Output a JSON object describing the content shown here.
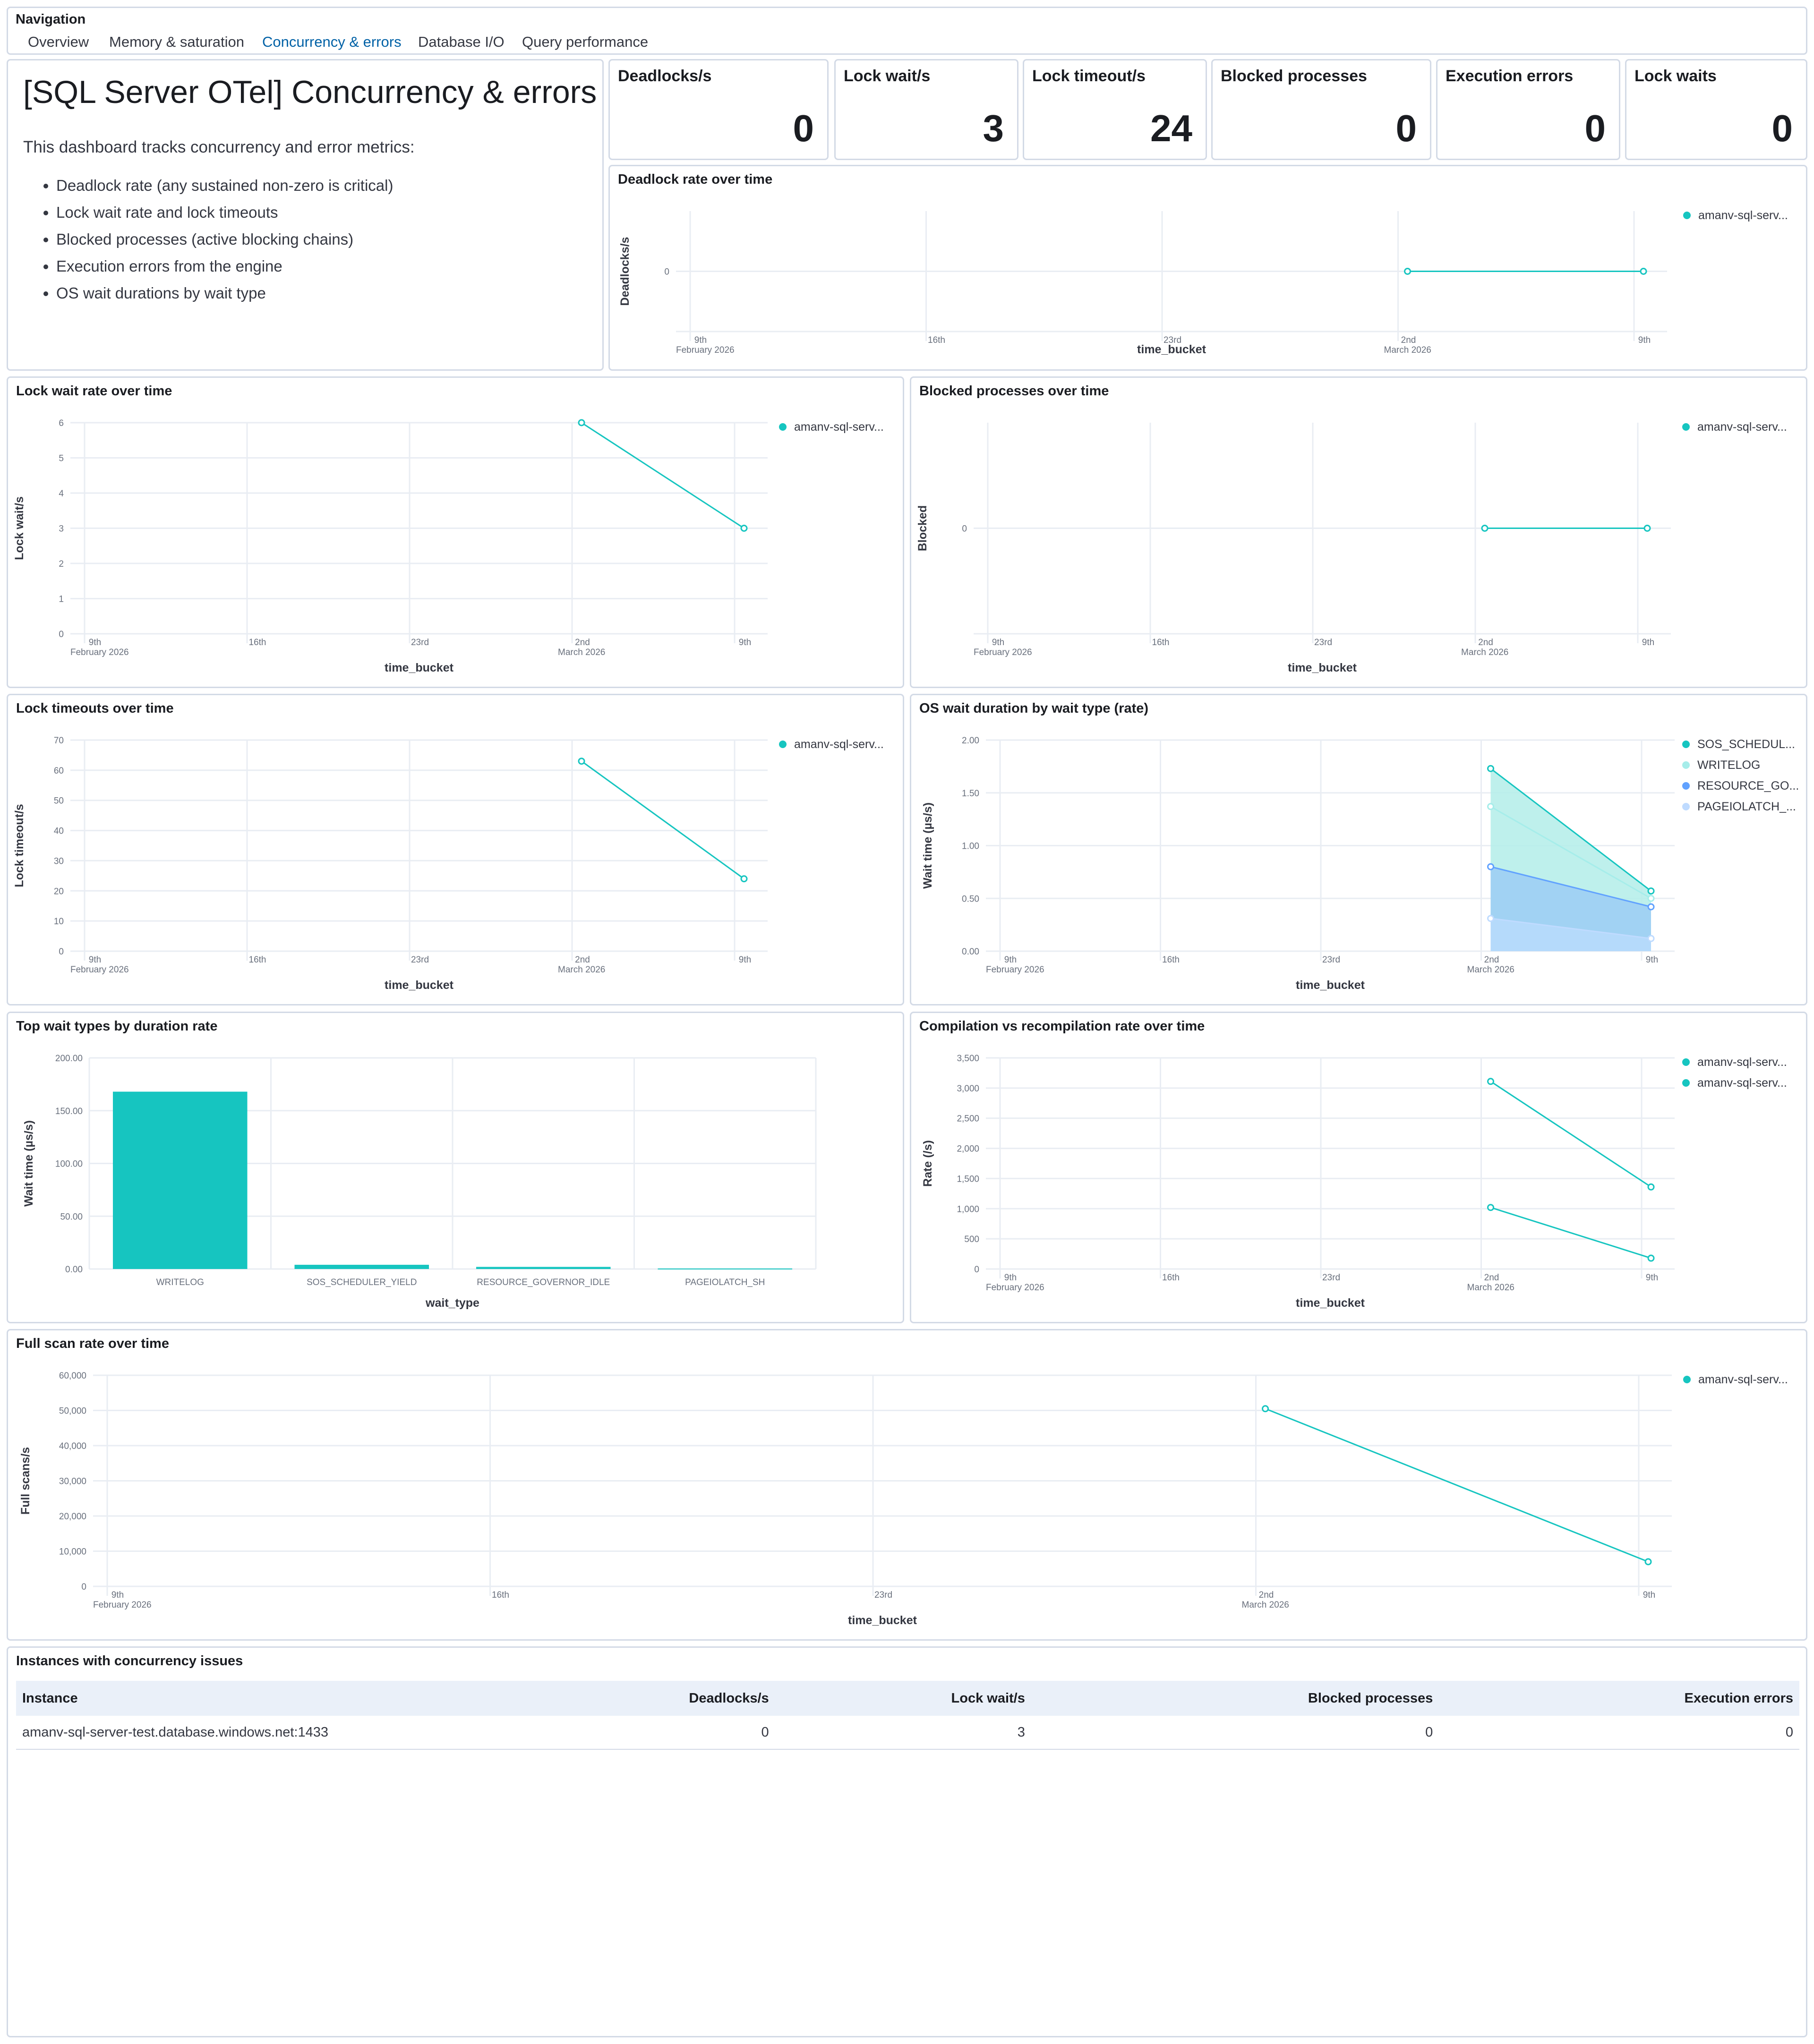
{
  "navigation": {
    "title": "Navigation",
    "links": [
      "Overview",
      "Memory & saturation",
      "Concurrency & errors",
      "Database I/O",
      "Query performance"
    ],
    "active": "Concurrency & errors"
  },
  "markdown": {
    "heading": "[SQL Server OTel] Concurrency & errors",
    "intro": "This dashboard tracks concurrency and error metrics:",
    "bullets": [
      "Deadlock rate (any sustained non-zero is critical)",
      "Lock wait rate and lock timeouts",
      "Blocked processes (active blocking chains)",
      "Execution errors from the engine",
      "OS wait durations by wait type"
    ]
  },
  "metrics": [
    {
      "label": "Deadlocks/s",
      "value": "0"
    },
    {
      "label": "Lock wait/s",
      "value": "3"
    },
    {
      "label": "Lock timeout/s",
      "value": "24"
    },
    {
      "label": "Blocked processes",
      "value": "0"
    },
    {
      "label": "Execution errors",
      "value": "0"
    },
    {
      "label": "Lock waits",
      "value": "0"
    }
  ],
  "colors": {
    "teal": "#16c5c0",
    "light_teal": "#a6edea",
    "blue": "#61a2ff",
    "light_blue": "#bfdbff",
    "grid": "#e9edf3",
    "border": "#d3dae6"
  },
  "chart_data": [
    {
      "id": "deadlock",
      "type": "line",
      "title": "Deadlock rate over time",
      "ylabel": "Deadlocks/s",
      "xlabel": "time_bucket",
      "x_ticks": [
        {
          "label": "9th",
          "sub": "February 2026"
        },
        {
          "label": "16th",
          "sub": ""
        },
        {
          "label": "23rd",
          "sub": ""
        },
        {
          "label": "2nd",
          "sub": "March 2026"
        },
        {
          "label": "9th",
          "sub": ""
        }
      ],
      "y_ticks": [
        "0"
      ],
      "ylim": [
        -1,
        1
      ],
      "series": [
        {
          "name": "amanv-sql-serv...",
          "x": [
            "2nd",
            "9th"
          ],
          "values": [
            0,
            0
          ]
        }
      ]
    },
    {
      "id": "lockwait",
      "type": "line",
      "title": "Lock wait rate over time",
      "ylabel": "Lock wait/s",
      "xlabel": "time_bucket",
      "x_ticks": [
        {
          "label": "9th",
          "sub": "February 2026"
        },
        {
          "label": "16th",
          "sub": ""
        },
        {
          "label": "23rd",
          "sub": ""
        },
        {
          "label": "2nd",
          "sub": "March 2026"
        },
        {
          "label": "9th",
          "sub": ""
        }
      ],
      "y_ticks": [
        "0",
        "1",
        "2",
        "3",
        "4",
        "5",
        "6"
      ],
      "ylim": [
        0,
        6
      ],
      "series": [
        {
          "name": "amanv-sql-serv...",
          "x": [
            "2nd",
            "9th"
          ],
          "values": [
            6,
            3
          ]
        }
      ]
    },
    {
      "id": "blocked",
      "type": "line",
      "title": "Blocked processes over time",
      "ylabel": "Blocked",
      "xlabel": "time_bucket",
      "x_ticks": [
        {
          "label": "9th",
          "sub": "February 2026"
        },
        {
          "label": "16th",
          "sub": ""
        },
        {
          "label": "23rd",
          "sub": ""
        },
        {
          "label": "2nd",
          "sub": "March 2026"
        },
        {
          "label": "9th",
          "sub": ""
        }
      ],
      "y_ticks": [
        "0"
      ],
      "ylim": [
        -1,
        1
      ],
      "series": [
        {
          "name": "amanv-sql-serv...",
          "x": [
            "2nd",
            "9th"
          ],
          "values": [
            0,
            0
          ]
        }
      ]
    },
    {
      "id": "locktimeout",
      "type": "line",
      "title": "Lock timeouts over time",
      "ylabel": "Lock timeout/s",
      "xlabel": "time_bucket",
      "x_ticks": [
        {
          "label": "9th",
          "sub": "February 2026"
        },
        {
          "label": "16th",
          "sub": ""
        },
        {
          "label": "23rd",
          "sub": ""
        },
        {
          "label": "2nd",
          "sub": "March 2026"
        },
        {
          "label": "9th",
          "sub": ""
        }
      ],
      "y_ticks": [
        "0",
        "10",
        "20",
        "30",
        "40",
        "50",
        "60",
        "70"
      ],
      "ylim": [
        0,
        70
      ],
      "series": [
        {
          "name": "amanv-sql-serv...",
          "x": [
            "2nd",
            "9th"
          ],
          "values": [
            63,
            24
          ]
        }
      ]
    },
    {
      "id": "oswait",
      "type": "area",
      "title": "OS wait duration by wait type (rate)",
      "ylabel": "Wait time (µs/s)",
      "xlabel": "time_bucket",
      "x_ticks": [
        {
          "label": "9th",
          "sub": "February 2026"
        },
        {
          "label": "16th",
          "sub": ""
        },
        {
          "label": "23rd",
          "sub": ""
        },
        {
          "label": "2nd",
          "sub": "March 2026"
        },
        {
          "label": "9th",
          "sub": ""
        }
      ],
      "y_ticks": [
        "0.00",
        "0.50",
        "1.00",
        "1.50",
        "2.00"
      ],
      "ylim": [
        0,
        2
      ],
      "series": [
        {
          "name": "SOS_SCHEDUL...",
          "x": [
            "2nd",
            "9th"
          ],
          "values": [
            1.73,
            0.57
          ]
        },
        {
          "name": "WRITELOG",
          "x": [
            "2nd",
            "9th"
          ],
          "values": [
            1.37,
            0.5
          ]
        },
        {
          "name": "RESOURCE_GO...",
          "x": [
            "2nd",
            "9th"
          ],
          "values": [
            0.8,
            0.42
          ]
        },
        {
          "name": "PAGEIOLATCH_...",
          "x": [
            "2nd",
            "9th"
          ],
          "values": [
            0.31,
            0.12
          ]
        }
      ]
    },
    {
      "id": "topwait",
      "type": "bar",
      "title": "Top wait types by duration rate",
      "ylabel": "Wait time (µs/s)",
      "xlabel": "wait_type",
      "categories": [
        "WRITELOG",
        "SOS_SCHEDULER_YIELD",
        "RESOURCE_GOVERNOR_IDLE",
        "PAGEIOLATCH_SH"
      ],
      "values": [
        168,
        4,
        2,
        0.5
      ],
      "y_ticks": [
        "0.00",
        "50.00",
        "100.00",
        "150.00",
        "200.00"
      ],
      "ylim": [
        0,
        200
      ]
    },
    {
      "id": "compile",
      "type": "line",
      "title": "Compilation vs recompilation rate over time",
      "ylabel": "Rate (/s)",
      "xlabel": "time_bucket",
      "x_ticks": [
        {
          "label": "9th",
          "sub": "February 2026"
        },
        {
          "label": "16th",
          "sub": ""
        },
        {
          "label": "23rd",
          "sub": ""
        },
        {
          "label": "2nd",
          "sub": "March 2026"
        },
        {
          "label": "9th",
          "sub": ""
        }
      ],
      "y_ticks": [
        "0",
        "500",
        "1,000",
        "1,500",
        "2,000",
        "2,500",
        "3,000",
        "3,500"
      ],
      "ylim": [
        0,
        3500
      ],
      "series": [
        {
          "name": "amanv-sql-serv...",
          "x": [
            "2nd",
            "9th"
          ],
          "values": [
            3110,
            1360
          ]
        },
        {
          "name": "amanv-sql-serv...",
          "x": [
            "2nd",
            "9th"
          ],
          "values": [
            1020,
            180
          ]
        }
      ]
    },
    {
      "id": "fullscan",
      "type": "line",
      "title": "Full scan rate over time",
      "ylabel": "Full scans/s",
      "xlabel": "time_bucket",
      "x_ticks": [
        {
          "label": "9th",
          "sub": "February 2026"
        },
        {
          "label": "16th",
          "sub": ""
        },
        {
          "label": "23rd",
          "sub": ""
        },
        {
          "label": "2nd",
          "sub": "March 2026"
        },
        {
          "label": "9th",
          "sub": ""
        }
      ],
      "y_ticks": [
        "0",
        "10,000",
        "20,000",
        "30,000",
        "40,000",
        "50,000",
        "60,000"
      ],
      "ylim": [
        0,
        60000
      ],
      "series": [
        {
          "name": "amanv-sql-serv...",
          "x": [
            "2nd",
            "9th"
          ],
          "values": [
            50500,
            7000
          ]
        }
      ]
    }
  ],
  "table": {
    "title": "Instances with concurrency issues",
    "columns": [
      "Instance",
      "Deadlocks/s",
      "Lock wait/s",
      "Blocked processes",
      "Execution errors"
    ],
    "rows": [
      [
        "amanv-sql-server-test.database.windows.net:1433",
        "0",
        "3",
        "0",
        "0"
      ]
    ]
  }
}
